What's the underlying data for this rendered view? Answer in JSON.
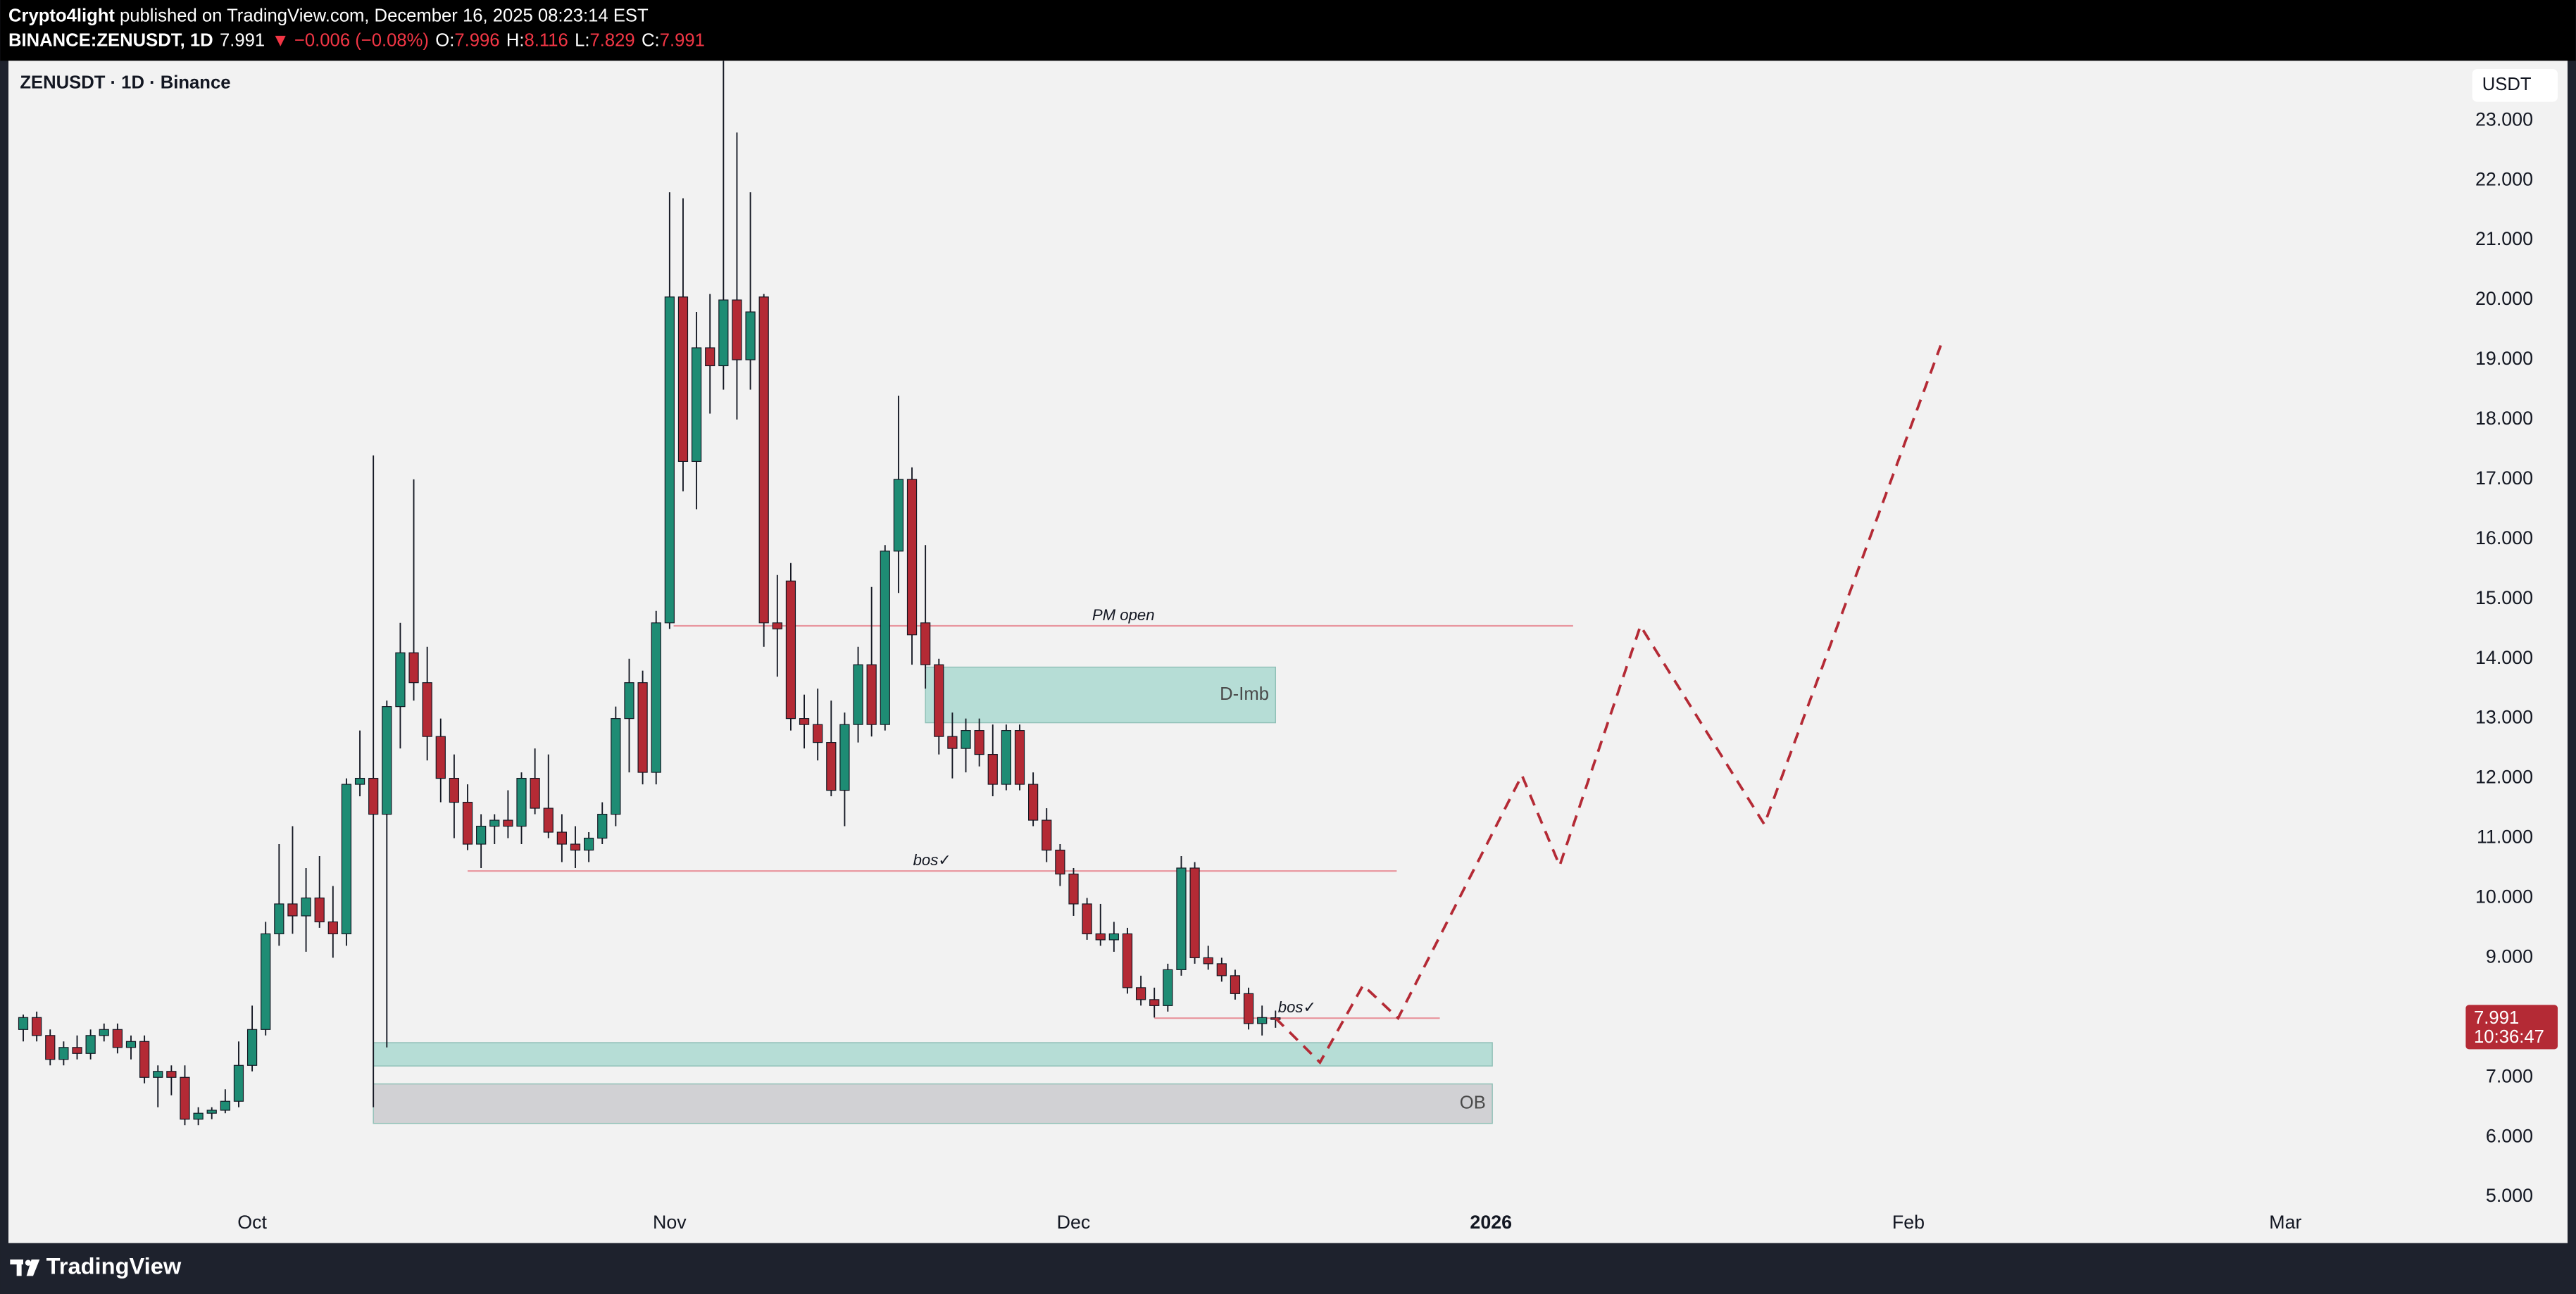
{
  "header": {
    "author": "Crypto4light",
    "published": "published on TradingView.com, December 16, 2025 08:23:14 EST",
    "symbol": "BINANCE:ZENUSDT, 1D",
    "last": "7.991",
    "change": "▼ −0.006 (−0.08%)",
    "ohlc": [
      {
        "label": "O:",
        "value": "7.996"
      },
      {
        "label": "H:",
        "value": "8.116"
      },
      {
        "label": "L:",
        "value": "7.829"
      },
      {
        "label": "C:",
        "value": "7.991"
      }
    ]
  },
  "chart_data": {
    "type": "candlestick",
    "title": "ZENUSDT · 1D · Binance",
    "currency": "USDT",
    "up_color": "#1e8c74",
    "down_color": "#b42a35",
    "open": [
      7.8,
      8.0,
      7.7,
      7.3,
      7.5,
      7.4,
      7.7,
      7.8,
      7.5,
      7.6,
      7.0,
      7.1,
      7.0,
      6.3,
      6.4,
      6.45,
      6.6,
      7.2,
      7.8,
      9.4,
      9.9,
      9.7,
      10.0,
      9.6,
      9.4,
      11.9,
      12.0,
      11.4,
      13.2,
      14.1,
      13.6,
      12.7,
      12.0,
      11.6,
      10.9,
      11.2,
      11.3,
      11.2,
      12.0,
      11.5,
      11.1,
      10.9,
      10.8,
      11.0,
      11.4,
      13.0,
      13.6,
      12.1,
      14.6,
      20.05,
      17.3,
      19.2,
      18.9,
      20.0,
      19.0,
      20.05,
      14.6,
      15.3,
      13.0,
      12.9,
      12.6,
      11.8,
      12.9,
      13.9,
      12.9,
      15.8,
      17.0,
      14.6,
      13.9,
      12.7,
      12.5,
      12.8,
      12.4,
      11.9,
      12.8,
      11.9,
      11.3,
      10.8,
      10.4,
      9.9,
      9.4,
      9.3,
      9.4,
      8.5,
      8.3,
      8.2,
      8.8,
      10.5,
      9.0,
      8.9,
      8.7,
      8.4,
      7.9,
      7.996
    ],
    "high": [
      8.05,
      8.1,
      7.8,
      7.6,
      7.7,
      7.8,
      7.9,
      7.9,
      7.7,
      7.7,
      7.2,
      7.2,
      7.2,
      6.5,
      6.5,
      6.8,
      7.6,
      8.2,
      9.6,
      10.9,
      11.2,
      10.5,
      10.7,
      10.2,
      12.0,
      12.8,
      17.4,
      13.3,
      14.6,
      17.0,
      14.2,
      13.0,
      12.4,
      11.9,
      11.4,
      11.4,
      11.8,
      12.1,
      12.5,
      12.4,
      11.4,
      11.2,
      11.1,
      11.6,
      13.2,
      14.0,
      13.8,
      14.8,
      21.8,
      21.7,
      19.8,
      20.1,
      24.0,
      22.8,
      21.8,
      20.1,
      15.4,
      15.6,
      13.4,
      13.5,
      13.3,
      13.1,
      14.2,
      15.2,
      15.9,
      18.4,
      17.2,
      15.9,
      14.0,
      13.1,
      13.0,
      13.0,
      12.9,
      12.9,
      12.9,
      12.1,
      11.5,
      10.9,
      10.5,
      10.0,
      9.9,
      9.6,
      9.5,
      8.7,
      8.5,
      8.9,
      10.7,
      10.6,
      9.2,
      9.0,
      8.8,
      8.5,
      8.2,
      8.116
    ],
    "low": [
      7.6,
      7.6,
      7.2,
      7.2,
      7.3,
      7.3,
      7.6,
      7.4,
      7.3,
      6.9,
      6.5,
      6.7,
      6.2,
      6.2,
      6.3,
      6.4,
      6.5,
      7.1,
      7.7,
      9.2,
      9.4,
      9.1,
      9.5,
      9.0,
      9.2,
      11.7,
      6.5,
      7.5,
      12.5,
      13.3,
      12.3,
      11.6,
      11.0,
      10.8,
      10.5,
      10.9,
      11.0,
      10.9,
      11.4,
      11.0,
      10.6,
      10.5,
      10.6,
      10.9,
      11.2,
      12.1,
      11.9,
      11.9,
      14.5,
      16.8,
      16.5,
      18.1,
      18.5,
      18.0,
      18.5,
      14.2,
      13.7,
      12.8,
      12.5,
      12.3,
      11.7,
      11.2,
      12.6,
      12.7,
      12.8,
      15.1,
      13.9,
      13.5,
      12.4,
      12.0,
      12.1,
      12.2,
      11.7,
      11.8,
      11.8,
      11.2,
      10.6,
      10.2,
      9.7,
      9.3,
      9.2,
      9.1,
      8.4,
      8.2,
      8.0,
      8.1,
      8.7,
      8.9,
      8.8,
      8.6,
      8.3,
      7.8,
      7.7,
      7.829
    ],
    "close": [
      8.0,
      7.7,
      7.3,
      7.5,
      7.4,
      7.7,
      7.8,
      7.5,
      7.6,
      7.0,
      7.1,
      7.0,
      6.3,
      6.4,
      6.45,
      6.6,
      7.2,
      7.8,
      9.4,
      9.9,
      9.7,
      10.0,
      9.6,
      9.4,
      11.9,
      12.0,
      11.4,
      13.2,
      14.1,
      13.6,
      12.7,
      12.0,
      11.6,
      10.9,
      11.2,
      11.3,
      11.2,
      12.0,
      11.5,
      11.1,
      10.9,
      10.8,
      11.0,
      11.4,
      13.0,
      13.6,
      12.1,
      14.6,
      20.05,
      17.3,
      19.2,
      18.9,
      20.0,
      19.0,
      19.8,
      14.6,
      14.5,
      13.0,
      12.9,
      12.6,
      11.8,
      12.9,
      13.9,
      12.9,
      15.8,
      17.0,
      14.4,
      13.9,
      12.7,
      12.5,
      12.8,
      12.4,
      11.9,
      12.8,
      11.9,
      11.3,
      10.8,
      10.4,
      9.9,
      9.4,
      9.3,
      9.4,
      8.5,
      8.3,
      8.2,
      8.8,
      10.5,
      9.0,
      8.9,
      8.7,
      8.4,
      7.9,
      8.0,
      7.991
    ],
    "last_price": 7.991,
    "countdown": "10:36:47",
    "xlim": [
      -1.1,
      180.9
    ],
    "ylim": [
      4.75,
      24.0
    ],
    "xticks": [
      {
        "value": 17,
        "label": "Oct"
      },
      {
        "value": 48,
        "label": "Nov"
      },
      {
        "value": 78,
        "label": "Dec"
      },
      {
        "value": 109,
        "label": "2026"
      },
      {
        "value": 140,
        "label": "Feb"
      },
      {
        "value": 168,
        "label": "Mar"
      }
    ],
    "yticks": [
      {
        "value": 5,
        "label": "5.000"
      },
      {
        "value": 6,
        "label": "6.000"
      },
      {
        "value": 7,
        "label": "7.000"
      },
      {
        "value": 8,
        "label": "8.000"
      },
      {
        "value": 9,
        "label": "9.000"
      },
      {
        "value": 10,
        "label": "10.000"
      },
      {
        "value": 11,
        "label": "11.000"
      },
      {
        "value": 12,
        "label": "12.000"
      },
      {
        "value": 13,
        "label": "13.000"
      },
      {
        "value": 14,
        "label": "14.000"
      },
      {
        "value": 15,
        "label": "15.000"
      },
      {
        "value": 16,
        "label": "16.000"
      },
      {
        "value": 17,
        "label": "17.000"
      },
      {
        "value": 18,
        "label": "18.000"
      },
      {
        "value": 19,
        "label": "19.000"
      },
      {
        "value": 20,
        "label": "20.000"
      },
      {
        "value": 21,
        "label": "21.000"
      },
      {
        "value": 22,
        "label": "22.000"
      },
      {
        "value": 23,
        "label": "23.000"
      }
    ],
    "grid": false,
    "annotations": {
      "lines": [
        {
          "label": "PM open",
          "y": 14.55,
          "x0": 48.3,
          "x1": 115.1,
          "color": "#e8939c"
        },
        {
          "label": "bos✓",
          "y": 10.45,
          "x0": 33,
          "x1": 102,
          "color": "#e8939c"
        },
        {
          "label": "bos✓",
          "y": 7.99,
          "x0": 84,
          "x1": 105.2,
          "color": "#e8939c"
        }
      ],
      "boxes": [
        {
          "label": "D-Imb",
          "x0": 67,
          "x1": 93,
          "y0": 12.93,
          "y1": 13.86,
          "color": "#b6ddd6"
        },
        {
          "x0": 26,
          "x1": 109.1,
          "y0": 7.19,
          "y1": 7.58,
          "color": "#b6ddd6"
        },
        {
          "label": "OB",
          "x0": 26,
          "x1": 109.1,
          "y0": 6.23,
          "y1": 6.89,
          "color": "#d1d1d4"
        }
      ],
      "projection": {
        "x": [
          93,
          96.3,
          99.5,
          102.1,
          111.3,
          114.1,
          120.1,
          129.3,
          142.4
        ],
        "y": [
          7.99,
          7.25,
          8.54,
          7.99,
          12.05,
          10.54,
          14.55,
          11.23,
          19.24
        ],
        "color": "#b42a35"
      }
    }
  },
  "footer": {
    "brand": "TradingView"
  }
}
